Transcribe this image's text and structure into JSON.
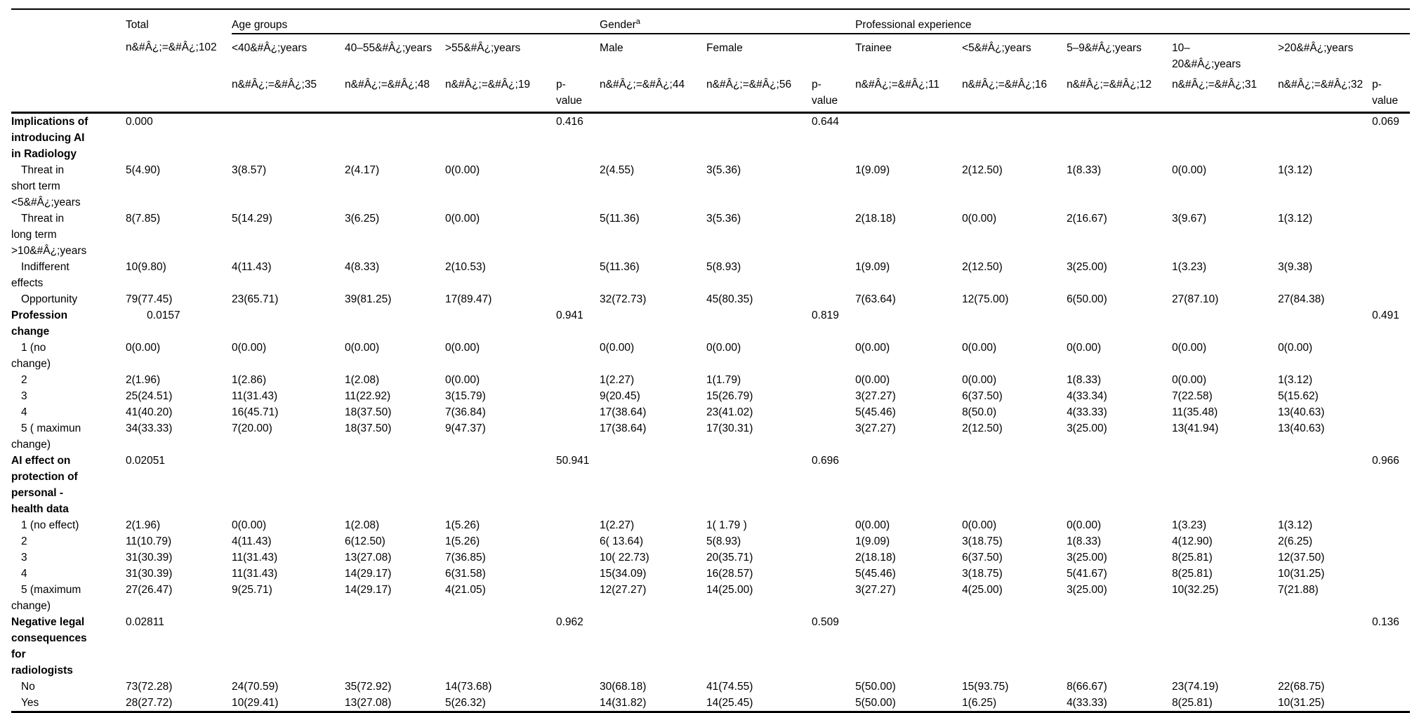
{
  "header": {
    "row1": {
      "total": "Total",
      "age": "Age groups",
      "gender": "Gender",
      "gender_sup": "a",
      "prof": "Professional experience"
    },
    "row2": {
      "total_n": "n&#Â¿;=&#Â¿;102",
      "age1": "<40&#Â¿;years",
      "age2": "40–55&#Â¿;years",
      "age3": ">55&#Â¿;years",
      "male": "Male",
      "female": "Female",
      "t1": "Trainee",
      "t2": "<5&#Â¿;years",
      "t3": "5–9&#Â¿;years",
      "t4": "10–\n20&#Â¿;years",
      "t5": ">20&#Â¿;years"
    },
    "row3": {
      "age1_n": "n&#Â¿;=&#Â¿;35",
      "age2_n": "n&#Â¿;=&#Â¿;48",
      "age3_n": "n&#Â¿;=&#Â¿;19",
      "p_age": "p-\nvalue",
      "male_n": "n&#Â¿;=&#Â¿;44",
      "female_n": "n&#Â¿;=&#Â¿;56",
      "p_gender": "p-\nvalue",
      "t1_n": "n&#Â¿;=&#Â¿;11",
      "t2_n": "n&#Â¿;=&#Â¿;16",
      "t3_n": "n&#Â¿;=&#Â¿;12",
      "t4_n": "n&#Â¿;=&#Â¿;31",
      "t5_n": "n&#Â¿;=&#Â¿;32",
      "p_prof": "p-\nvalue"
    }
  },
  "rows": [
    {
      "label": "Implications of\nintroducing AI\nin Radiology",
      "bold": true,
      "indent": false,
      "cells": [
        "0.000",
        "",
        "",
        "",
        "0.416",
        "",
        "",
        "0.644",
        "",
        "",
        "",
        "",
        "",
        "0.069"
      ]
    },
    {
      "label": "Threat in\nshort term\n<5&#Â¿;years",
      "bold": false,
      "indent": true,
      "cells": [
        "5(4.90)",
        "3(8.57)",
        "2(4.17)",
        "0(0.00)",
        "",
        "2(4.55)",
        "3(5.36)",
        "",
        "1(9.09)",
        "2(12.50)",
        "1(8.33)",
        "0(0.00)",
        "1(3.12)",
        ""
      ]
    },
    {
      "label": "Threat in\nlong term\n>10&#Â¿;years",
      "bold": false,
      "indent": true,
      "cells": [
        "8(7.85)",
        "5(14.29)",
        "3(6.25)",
        "0(0.00)",
        "",
        "5(11.36)",
        "3(5.36)",
        "",
        "2(18.18)",
        "0(0.00)",
        "2(16.67)",
        "3(9.67)",
        "1(3.12)",
        ""
      ]
    },
    {
      "label": "Indifferent\neffects",
      "bold": false,
      "indent": true,
      "cells": [
        "10(9.80)",
        "4(11.43)",
        "4(8.33)",
        "2(10.53)",
        "",
        "5(11.36)",
        "5(8.93)",
        "",
        "1(9.09)",
        "2(12.50)",
        "3(25.00)",
        "1(3.23)",
        "3(9.38)",
        ""
      ]
    },
    {
      "label": "Opportunity",
      "bold": false,
      "indent": true,
      "cells": [
        "79(77.45)",
        "23(65.71)",
        "39(81.25)",
        "17(89.47)",
        "",
        "32(72.73)",
        "45(80.35)",
        "",
        "7(63.64)",
        "12(75.00)",
        "6(50.00)",
        "27(87.10)",
        "27(84.38)",
        ""
      ]
    },
    {
      "label": "Profession\nchange",
      "bold": true,
      "indent": false,
      "cells": [
        "       0.0157",
        "",
        "",
        "",
        "0.941",
        "",
        "",
        "0.819",
        "",
        "",
        "",
        "",
        "",
        "0.491"
      ]
    },
    {
      "label": "1 (no\nchange)",
      "bold": false,
      "indent": true,
      "cells": [
        "0(0.00)",
        "0(0.00)",
        "0(0.00)",
        "0(0.00)",
        "",
        "0(0.00)",
        "0(0.00)",
        "",
        "0(0.00)",
        "0(0.00)",
        "0(0.00)",
        "0(0.00)",
        "0(0.00)",
        ""
      ]
    },
    {
      "label": "2",
      "bold": false,
      "indent": true,
      "cells": [
        "2(1.96)",
        "1(2.86)",
        "1(2.08)",
        "0(0.00)",
        "",
        "1(2.27)",
        "1(1.79)",
        "",
        "0(0.00)",
        "0(0.00)",
        "1(8.33)",
        "0(0.00)",
        "1(3.12)",
        ""
      ]
    },
    {
      "label": "3",
      "bold": false,
      "indent": true,
      "cells": [
        "25(24.51)",
        "11(31.43)",
        "11(22.92)",
        "3(15.79)",
        "",
        "9(20.45)",
        "15(26.79)",
        "",
        "3(27.27)",
        "6(37.50)",
        "4(33.34)",
        "7(22.58)",
        "5(15.62)",
        ""
      ]
    },
    {
      "label": "4",
      "bold": false,
      "indent": true,
      "cells": [
        "41(40.20)",
        "16(45.71)",
        "18(37.50)",
        "7(36.84)",
        "",
        "17(38.64)",
        "23(41.02)",
        "",
        "5(45.46)",
        "8(50.0)",
        "4(33.33)",
        "11(35.48)",
        "13(40.63)",
        ""
      ]
    },
    {
      "label": "5 ( maximun\nchange)",
      "bold": false,
      "indent": true,
      "cells": [
        "34(33.33)",
        "7(20.00)",
        "18(37.50)",
        "9(47.37)",
        "",
        "17(38.64)",
        "17(30.31)",
        "",
        "3(27.27)",
        "2(12.50)",
        "3(25.00)",
        "13(41.94)",
        "13(40.63)",
        ""
      ]
    },
    {
      "label": "AI effect on\nprotection of\npersonal -\nhealth data",
      "bold": true,
      "indent": false,
      "cells": [
        "0.02051",
        "",
        "",
        "",
        "50.941",
        "",
        "",
        "0.696",
        "",
        "",
        "",
        "",
        "",
        "0.966"
      ]
    },
    {
      "label": "1 (no effect)",
      "bold": false,
      "indent": true,
      "cells": [
        "2(1.96)",
        "0(0.00)",
        "1(2.08)",
        "1(5.26)",
        "",
        "1(2.27)",
        "1( 1.79 )",
        "",
        "0(0.00)",
        "0(0.00)",
        "0(0.00)",
        "1(3.23)",
        "1(3.12)",
        ""
      ]
    },
    {
      "label": "2",
      "bold": false,
      "indent": true,
      "cells": [
        "11(10.79)",
        "4(11.43)",
        "6(12.50)",
        "1(5.26)",
        "",
        "6( 13.64)",
        "5(8.93)",
        "",
        "1(9.09)",
        "3(18.75)",
        "1(8.33)",
        "4(12.90)",
        "2(6.25)",
        ""
      ]
    },
    {
      "label": "3",
      "bold": false,
      "indent": true,
      "cells": [
        "31(30.39)",
        "11(31.43)",
        "13(27.08)",
        "7(36.85)",
        "",
        "10( 22.73)",
        "20(35.71)",
        "",
        "2(18.18)",
        "6(37.50)",
        "3(25.00)",
        "8(25.81)",
        "12(37.50)",
        ""
      ]
    },
    {
      "label": "4",
      "bold": false,
      "indent": true,
      "cells": [
        "31(30.39)",
        "11(31.43)",
        "14(29.17)",
        "6(31.58)",
        "",
        "15(34.09)",
        "16(28.57)",
        "",
        "5(45.46)",
        "3(18.75)",
        "5(41.67)",
        "8(25.81)",
        "10(31.25)",
        ""
      ]
    },
    {
      "label": "5 (maximum\nchange)",
      "bold": false,
      "indent": true,
      "cells": [
        "27(26.47)",
        "9(25.71)",
        "14(29.17)",
        "4(21.05)",
        "",
        "12(27.27)",
        "14(25.00)",
        "",
        "3(27.27)",
        "4(25.00)",
        "3(25.00)",
        "10(32.25)",
        "7(21.88)",
        ""
      ]
    },
    {
      "label": "Negative legal\nconsequences\nfor\nradiologists",
      "bold": true,
      "indent": false,
      "cells": [
        "0.02811",
        "",
        "",
        "",
        "0.962",
        "",
        "",
        "0.509",
        "",
        "",
        "",
        "",
        "",
        "0.136"
      ]
    },
    {
      "label": "No",
      "bold": false,
      "indent": true,
      "cells": [
        "73(72.28)",
        "24(70.59)",
        "35(72.92)",
        "14(73.68)",
        "",
        "30(68.18)",
        "41(74.55)",
        "",
        "5(50.00)",
        "15(93.75)",
        "8(66.67)",
        "23(74.19)",
        "22(68.75)",
        ""
      ]
    },
    {
      "label": "Yes",
      "bold": false,
      "indent": true,
      "cells": [
        "28(27.72)",
        "10(29.41)",
        "13(27.08)",
        "5(26.32)",
        "",
        "14(31.82)",
        "14(25.45)",
        "",
        "5(50.00)",
        "1(6.25)",
        "4(33.33)",
        "8(25.81)",
        "10(31.25)",
        ""
      ]
    }
  ]
}
